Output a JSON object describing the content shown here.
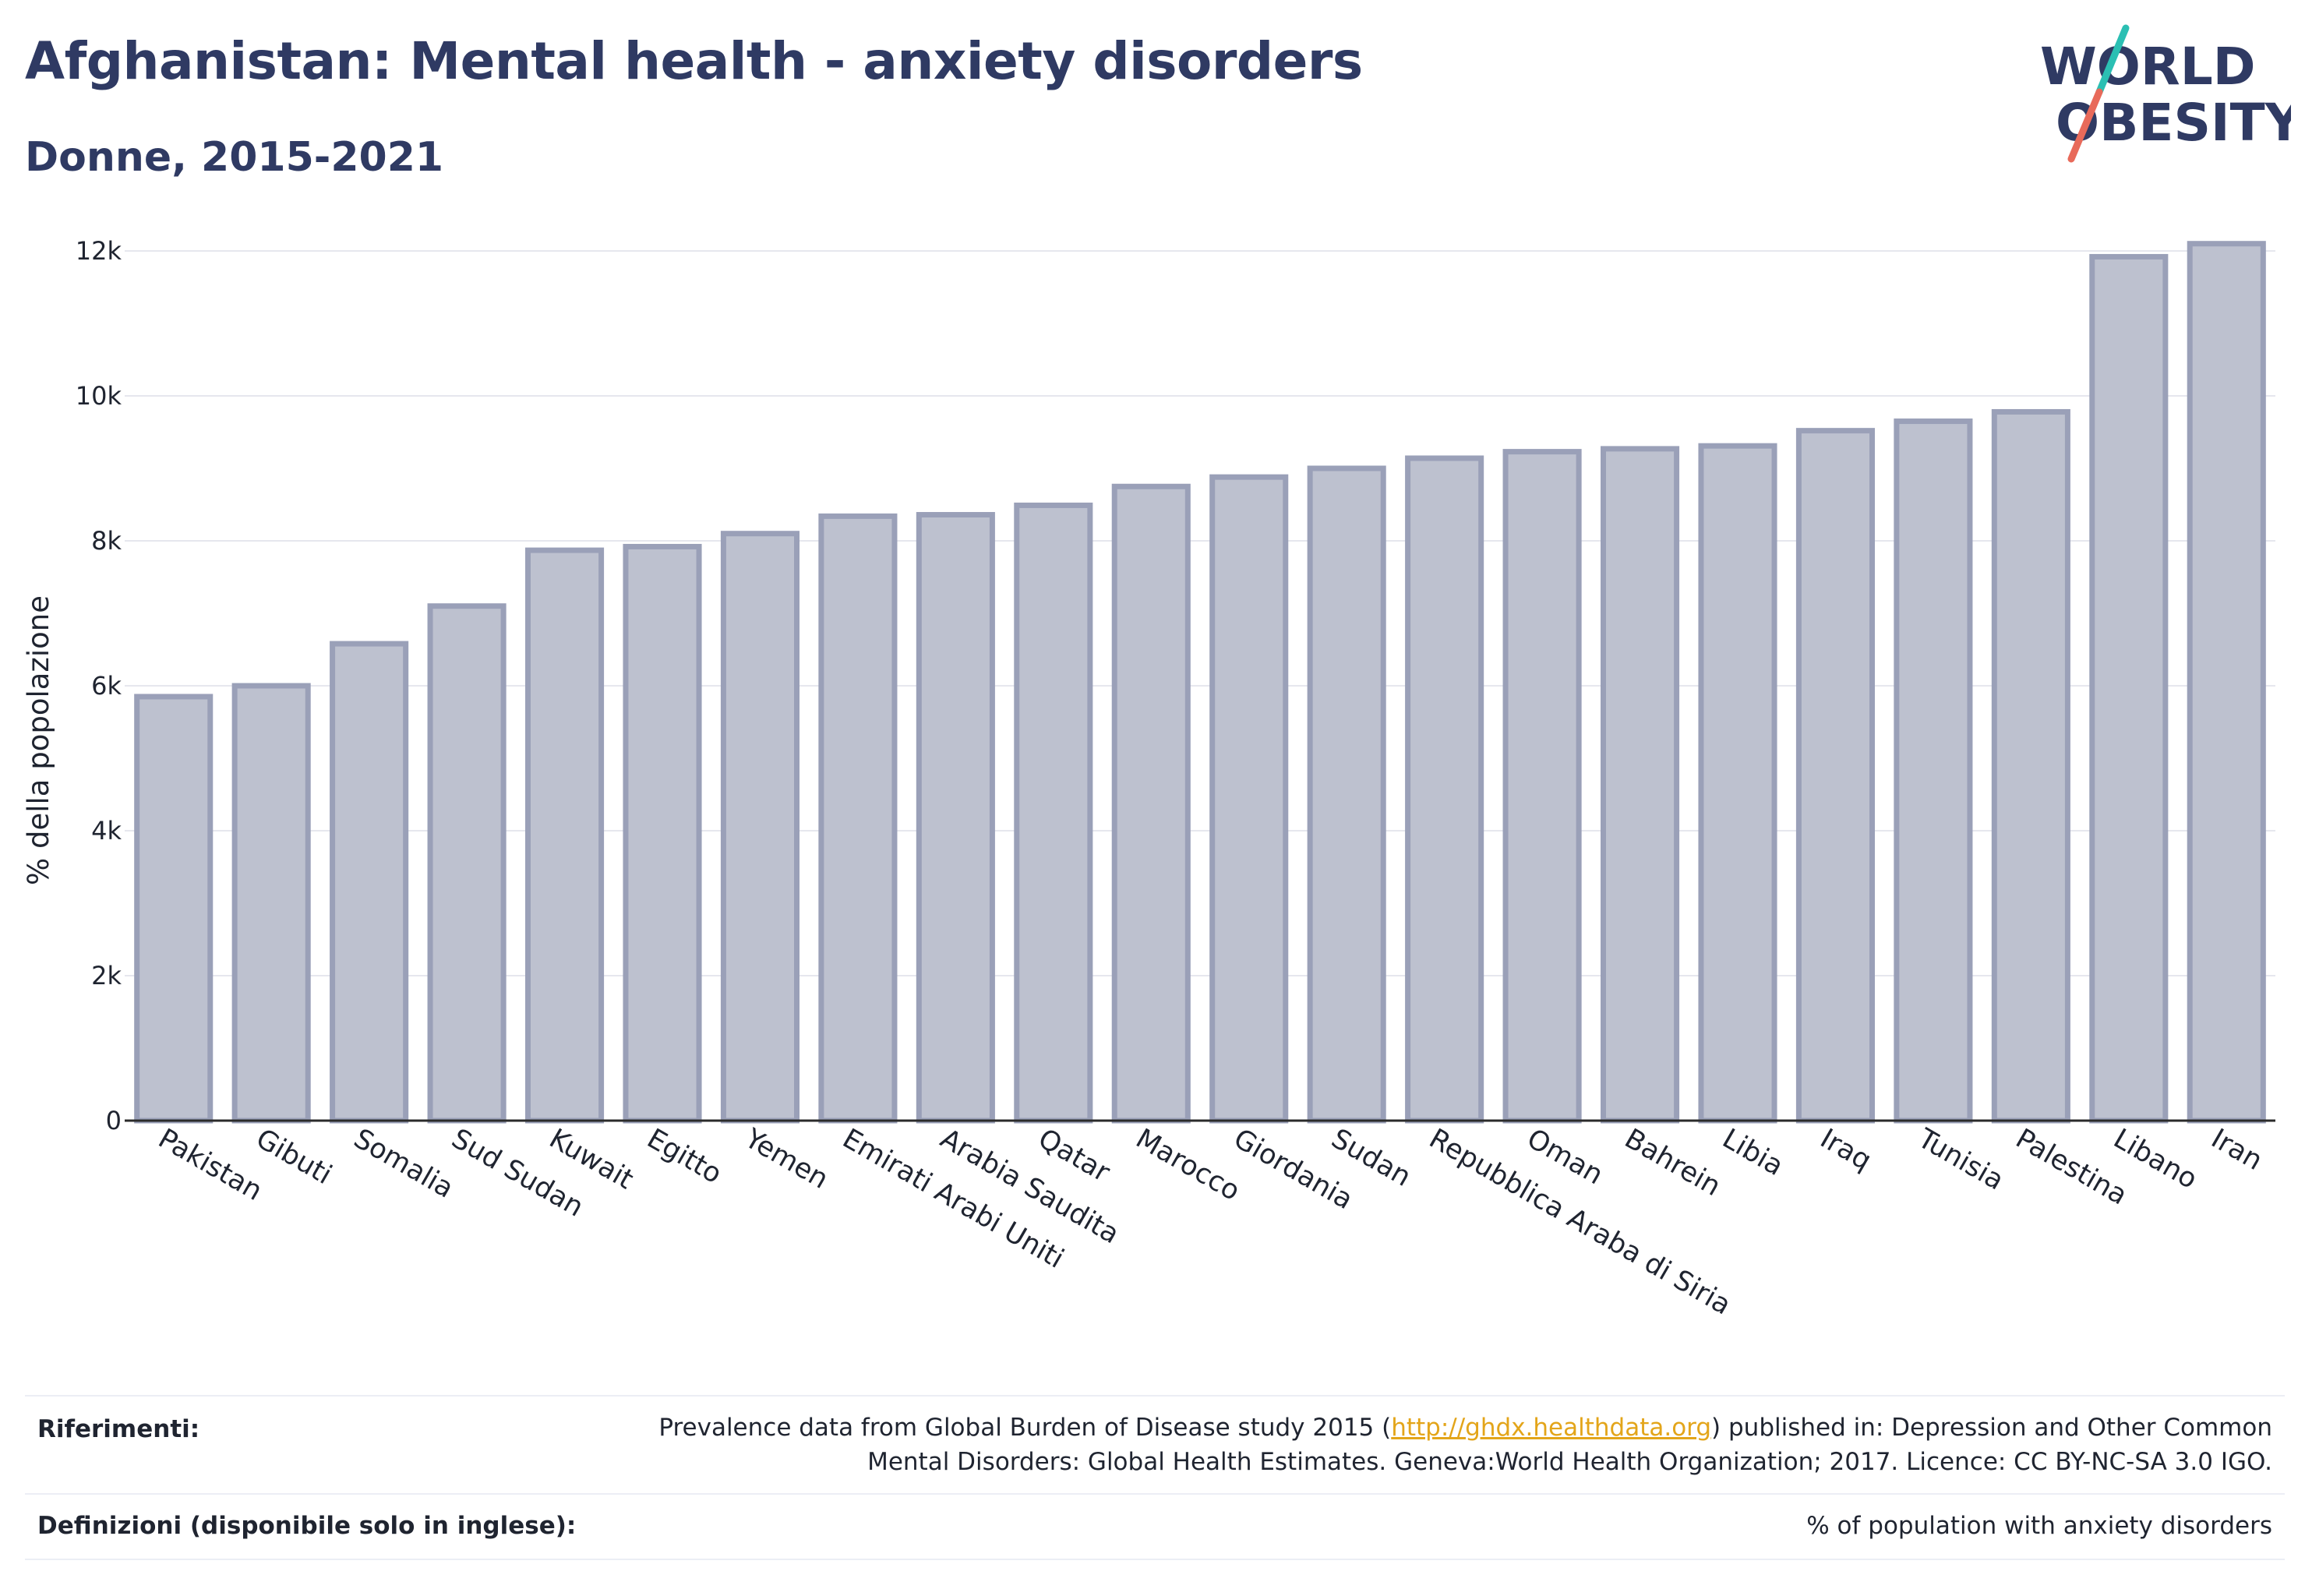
{
  "header": {
    "title": "Afghanistan: Mental health - anxiety disorders",
    "subtitle": "Donne, 2015-2021"
  },
  "logo": {
    "line1": "WORLD",
    "line2": "OBESITY",
    "colors": {
      "text": "#2f3a63",
      "slash_top": "#2bbfb3",
      "slash_bottom": "#e86a5a"
    }
  },
  "colors": {
    "bar_fill": "#bdc1cf",
    "bar_stroke": "#9aa0b8",
    "title": "#2f3a63",
    "link": "#e3a51a"
  },
  "chart_data": {
    "type": "bar",
    "title": "Afghanistan: Mental health - anxiety disorders",
    "subtitle": "Donne, 2015-2021",
    "ylabel": "% della popolazione",
    "xlabel": "",
    "ylim": [
      0,
      12500
    ],
    "yticks": [
      0,
      2000,
      4000,
      6000,
      8000,
      10000,
      12000
    ],
    "ytick_labels": [
      "0",
      "2k",
      "4k",
      "6k",
      "8k",
      "10k",
      "12k"
    ],
    "grid": true,
    "categories": [
      "Pakistan",
      "Gibuti",
      "Somalia",
      "Sud Sudan",
      "Kuwait",
      "Egitto",
      "Yemen",
      "Emirati Arabi Uniti",
      "Arabia Saudita",
      "Qatar",
      "Marocco",
      "Giordania",
      "Sudan",
      "Repubblica Araba di Siria",
      "Oman",
      "Bahrein",
      "Libia",
      "Iraq",
      "Tunisia",
      "Palestina",
      "Libano",
      "Iran"
    ],
    "values": [
      5850,
      6000,
      6580,
      7100,
      7870,
      7920,
      8100,
      8340,
      8360,
      8490,
      8750,
      8880,
      9000,
      9140,
      9230,
      9270,
      9310,
      9520,
      9650,
      9780,
      11920,
      12100
    ]
  },
  "footer": {
    "references_label": "Riferimenti:",
    "references_text_before": "Prevalence data from Global Burden of Disease study 2015 (",
    "references_link": "http://ghdx.healthdata.org",
    "references_text_after": ") published in: Depression and Other Common",
    "references_line2": "Mental Disorders: Global Health Estimates. Geneva:World Health Organization; 2017. Licence: CC BY-NC-SA 3.0 IGO.",
    "definitions_label": "Definizioni (disponibile solo in inglese):",
    "definitions_text": "% of population with anxiety disorders"
  }
}
